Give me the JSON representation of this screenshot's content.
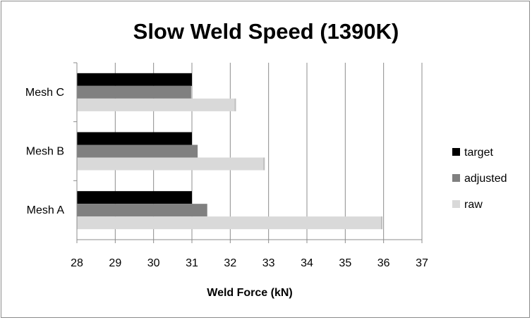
{
  "chart_data": {
    "type": "bar",
    "orientation": "horizontal",
    "title": "Slow Weld Speed (1390K)",
    "xlabel": "Weld Force (kN)",
    "ylabel": "",
    "xlim": [
      28,
      37
    ],
    "x_ticks": [
      "28",
      "29",
      "30",
      "31",
      "32",
      "33",
      "34",
      "35",
      "36",
      "37"
    ],
    "categories": [
      "Mesh A",
      "Mesh B",
      "Mesh C"
    ],
    "series": [
      {
        "name": "target",
        "color": "#000000",
        "values": [
          31.0,
          31.0,
          31.0
        ]
      },
      {
        "name": "adjusted",
        "color": "#808080",
        "values": [
          31.4,
          31.15,
          30.98
        ]
      },
      {
        "name": "raw",
        "color": "#d9d9d9",
        "values": [
          35.97,
          32.9,
          32.15
        ]
      }
    ],
    "grid": "vertical-major",
    "legend_position": "right"
  }
}
